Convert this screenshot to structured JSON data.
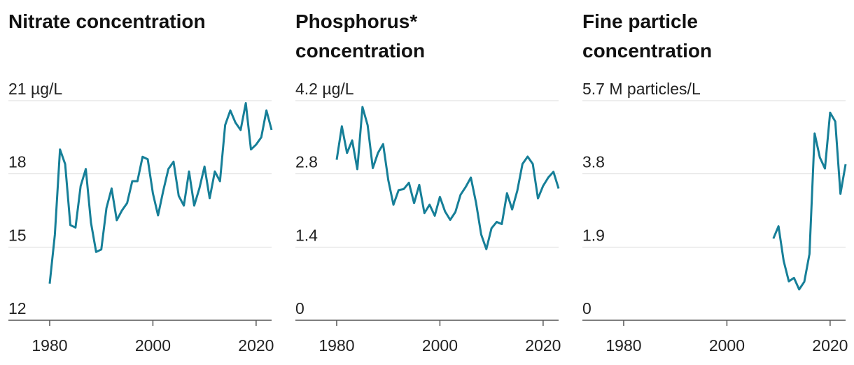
{
  "chart_data": [
    {
      "type": "line",
      "title": "Nitrate concentration",
      "color": "#167f98",
      "x": [
        1980,
        1981,
        1982,
        1983,
        1984,
        1985,
        1986,
        1987,
        1988,
        1989,
        1990,
        1991,
        1992,
        1993,
        1994,
        1995,
        1996,
        1997,
        1998,
        1999,
        2000,
        2001,
        2002,
        2003,
        2004,
        2005,
        2006,
        2007,
        2008,
        2009,
        2010,
        2011,
        2012,
        2013,
        2014,
        2015,
        2016,
        2017,
        2018,
        2019,
        2020,
        2021,
        2022,
        2023
      ],
      "values": [
        13.5,
        15.5,
        19.0,
        18.4,
        15.9,
        15.8,
        17.5,
        18.2,
        16.0,
        14.8,
        14.9,
        16.6,
        17.4,
        16.1,
        16.5,
        16.8,
        17.7,
        17.7,
        18.7,
        18.6,
        17.2,
        16.3,
        17.3,
        18.2,
        18.5,
        17.1,
        16.7,
        18.1,
        16.7,
        17.4,
        18.3,
        17.0,
        18.1,
        17.7,
        20.0,
        20.6,
        20.1,
        19.8,
        20.9,
        19.0,
        19.2,
        19.5,
        20.6,
        19.8
      ],
      "xlim": [
        1972,
        2023
      ],
      "xticks": [
        1980,
        2000,
        2020
      ],
      "ylim": [
        12,
        21
      ],
      "yticks": [
        12,
        15,
        18,
        {
          "value": 21,
          "label": "21 µg/L"
        }
      ],
      "grid": true
    },
    {
      "type": "line",
      "title": "Phosphorus* concentration",
      "color": "#167f98",
      "x": [
        1980,
        1981,
        1982,
        1983,
        1984,
        1985,
        1986,
        1987,
        1988,
        1989,
        1990,
        1991,
        1992,
        1993,
        1994,
        1995,
        1996,
        1997,
        1998,
        1999,
        2000,
        2001,
        2002,
        2003,
        2004,
        2005,
        2006,
        2007,
        2008,
        2009,
        2010,
        2011,
        2012,
        2013,
        2014,
        2015,
        2016,
        2017,
        2018,
        2019,
        2020,
        2021,
        2022,
        2023
      ],
      "values": [
        3.07,
        3.71,
        3.2,
        3.44,
        2.89,
        4.08,
        3.73,
        2.91,
        3.2,
        3.37,
        2.68,
        2.21,
        2.49,
        2.51,
        2.63,
        2.24,
        2.59,
        2.05,
        2.21,
        2.0,
        2.36,
        2.08,
        1.92,
        2.07,
        2.4,
        2.55,
        2.73,
        2.25,
        1.64,
        1.36,
        1.76,
        1.88,
        1.84,
        2.43,
        2.12,
        2.48,
        2.99,
        3.13,
        2.99,
        2.33,
        2.57,
        2.73,
        2.84,
        2.52
      ],
      "xlim": [
        1972,
        2023
      ],
      "xticks": [
        1980,
        2000,
        2020
      ],
      "ylim": [
        0,
        4.2
      ],
      "yticks": [
        0,
        1.4,
        2.8,
        {
          "value": 4.2,
          "label": "4.2 µg/L"
        }
      ],
      "grid": true
    },
    {
      "type": "line",
      "title": "Fine particle concentration",
      "color": "#167f98",
      "x": [
        2009,
        2010,
        2011,
        2012,
        2013,
        2014,
        2015,
        2016,
        2017,
        2018,
        2019,
        2020,
        2021,
        2022,
        2023
      ],
      "values": [
        2.12,
        2.44,
        1.54,
        1.01,
        1.1,
        0.8,
        1.0,
        1.72,
        4.85,
        4.23,
        3.94,
        5.39,
        5.16,
        3.28,
        4.05
      ],
      "xlim": [
        1972,
        2023
      ],
      "xticks": [
        1980,
        2000,
        2020
      ],
      "ylim": [
        0,
        5.7
      ],
      "yticks": [
        0,
        1.9,
        3.8,
        {
          "value": 5.7,
          "label": "5.7 M particles/L"
        }
      ],
      "grid": true
    }
  ]
}
